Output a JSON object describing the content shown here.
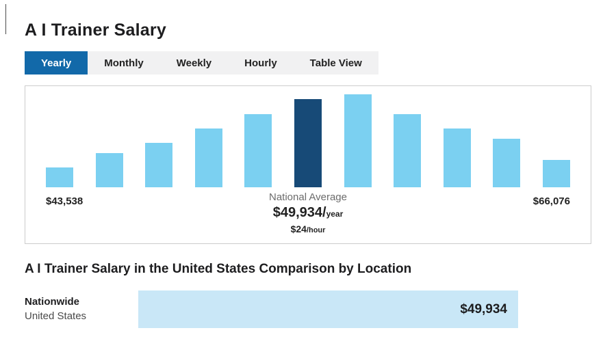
{
  "page": {
    "title": "A I Trainer Salary"
  },
  "tabs": [
    {
      "label": "Yearly",
      "active": true
    },
    {
      "label": "Monthly",
      "active": false
    },
    {
      "label": "Weekly",
      "active": false
    },
    {
      "label": "Hourly",
      "active": false
    },
    {
      "label": "Table View",
      "active": false
    }
  ],
  "chart_data": {
    "type": "bar",
    "title": "A I Trainer Salary distribution (Yearly)",
    "min_label": "$43,538",
    "max_label": "$66,076",
    "national_average_label": "National Average",
    "average_value": "$49,934/",
    "average_unit": "year",
    "hourly_value": "$24",
    "hourly_unit": "/hour",
    "values": [
      30,
      52,
      68,
      90,
      112,
      135,
      142,
      112,
      90,
      74,
      42
    ],
    "highlight_index": 5,
    "legend": "off",
    "grid": "off",
    "colors": {
      "bar": "#7bd0f1",
      "highlight": "#174a77"
    }
  },
  "comparison": {
    "heading": "A I Trainer Salary in the United States Comparison by Location",
    "rows": [
      {
        "region": "Nationwide",
        "sub_region": "United States",
        "value": "$49,934",
        "width_pct": 100,
        "bar_color": "#c9e7f7"
      }
    ]
  }
}
